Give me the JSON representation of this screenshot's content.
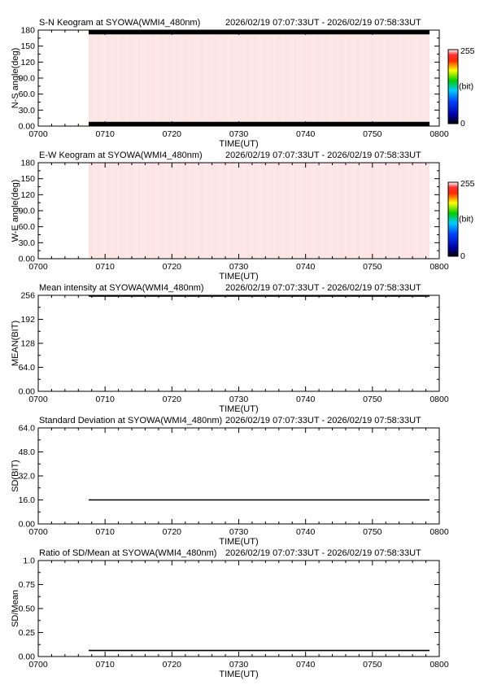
{
  "time_range": "2026/02/19 07:07:33UT - 2026/02/19 07:58:33UT",
  "colorbar": {
    "max_label": "255",
    "min_label": "0",
    "unit_label": "(bit)"
  },
  "chart_data": [
    {
      "type": "heatmap",
      "title": "S-N Keogram at SYOWA(WMI4_480nm)",
      "xlabel": "TIME(UT)",
      "ylabel": "N-S angle(deg)",
      "x_ticks": [
        "0700",
        "0710",
        "0720",
        "0730",
        "0740",
        "0750",
        "0800"
      ],
      "x_range_minutes": [
        0,
        60
      ],
      "data_x_range_minutes": [
        7.55,
        58.55
      ],
      "y_ticks": [
        "0.00",
        "30.0",
        "60.0",
        "90.0",
        "120",
        "150",
        "180"
      ],
      "ylim": [
        0,
        180
      ],
      "ytick_values": [
        0,
        30,
        60,
        90,
        120,
        150,
        180
      ],
      "fill_color": "#fde4e4",
      "masked_bands_deg": [
        [
          0,
          8
        ],
        [
          172,
          180
        ]
      ],
      "masked_color": "#000000",
      "colorbar": true
    },
    {
      "type": "heatmap",
      "title": "E-W Keogram at SYOWA(WMI4_480nm)",
      "xlabel": "TIME(UT)",
      "ylabel": "W-E angle(deg)",
      "x_ticks": [
        "0700",
        "0710",
        "0720",
        "0730",
        "0740",
        "0750",
        "0800"
      ],
      "x_range_minutes": [
        0,
        60
      ],
      "data_x_range_minutes": [
        7.55,
        58.55
      ],
      "y_ticks": [
        "0.00",
        "30.0",
        "60.0",
        "90.0",
        "120",
        "150",
        "180"
      ],
      "ylim": [
        0,
        180
      ],
      "ytick_values": [
        0,
        30,
        60,
        90,
        120,
        150,
        180
      ],
      "fill_color": "#fde4e4",
      "masked_bands_deg": [],
      "masked_color": "#000000",
      "colorbar": true
    },
    {
      "type": "line",
      "title": "Mean intensity at SYOWA(WMI4_480nm)",
      "xlabel": "TIME(UT)",
      "ylabel": "MEAN(BIT)",
      "x_ticks": [
        "0700",
        "0710",
        "0720",
        "0730",
        "0740",
        "0750",
        "0800"
      ],
      "x_range_minutes": [
        0,
        60
      ],
      "y_ticks": [
        "0.00",
        "64.0",
        "128",
        "192",
        "256"
      ],
      "ylim": [
        0,
        256
      ],
      "ytick_values": [
        0,
        64,
        128,
        192,
        256
      ],
      "series": [
        {
          "x": [
            7.55,
            58.55
          ],
          "y": [
            254,
            254
          ]
        }
      ]
    },
    {
      "type": "line",
      "title": "Standard Deviation at SYOWA(WMI4_480nm)",
      "xlabel": "TIME(UT)",
      "ylabel": "SD(BIT)",
      "x_ticks": [
        "0700",
        "0710",
        "0720",
        "0730",
        "0740",
        "0750",
        "0800"
      ],
      "x_range_minutes": [
        0,
        60
      ],
      "y_ticks": [
        "0.00",
        "16.0",
        "32.0",
        "48.0",
        "64.0"
      ],
      "ylim": [
        0,
        64
      ],
      "ytick_values": [
        0,
        16,
        32,
        48,
        64
      ],
      "series": [
        {
          "x": [
            7.55,
            58.55
          ],
          "y": [
            16,
            16
          ]
        }
      ]
    },
    {
      "type": "line",
      "title": "Ratio of SD/Mean at SYOWA(WMI4_480nm)",
      "xlabel": "TIME(UT)",
      "ylabel": "SD/Mean",
      "x_ticks": [
        "0700",
        "0710",
        "0720",
        "0730",
        "0740",
        "0750",
        "0800"
      ],
      "x_range_minutes": [
        0,
        60
      ],
      "y_ticks": [
        "0.00",
        "0.25",
        "0.50",
        "0.75",
        "1.0"
      ],
      "ylim": [
        0,
        1
      ],
      "ytick_values": [
        0,
        0.25,
        0.5,
        0.75,
        1
      ],
      "series": [
        {
          "x": [
            7.55,
            58.55
          ],
          "y": [
            0.063,
            0.063
          ]
        }
      ]
    }
  ]
}
